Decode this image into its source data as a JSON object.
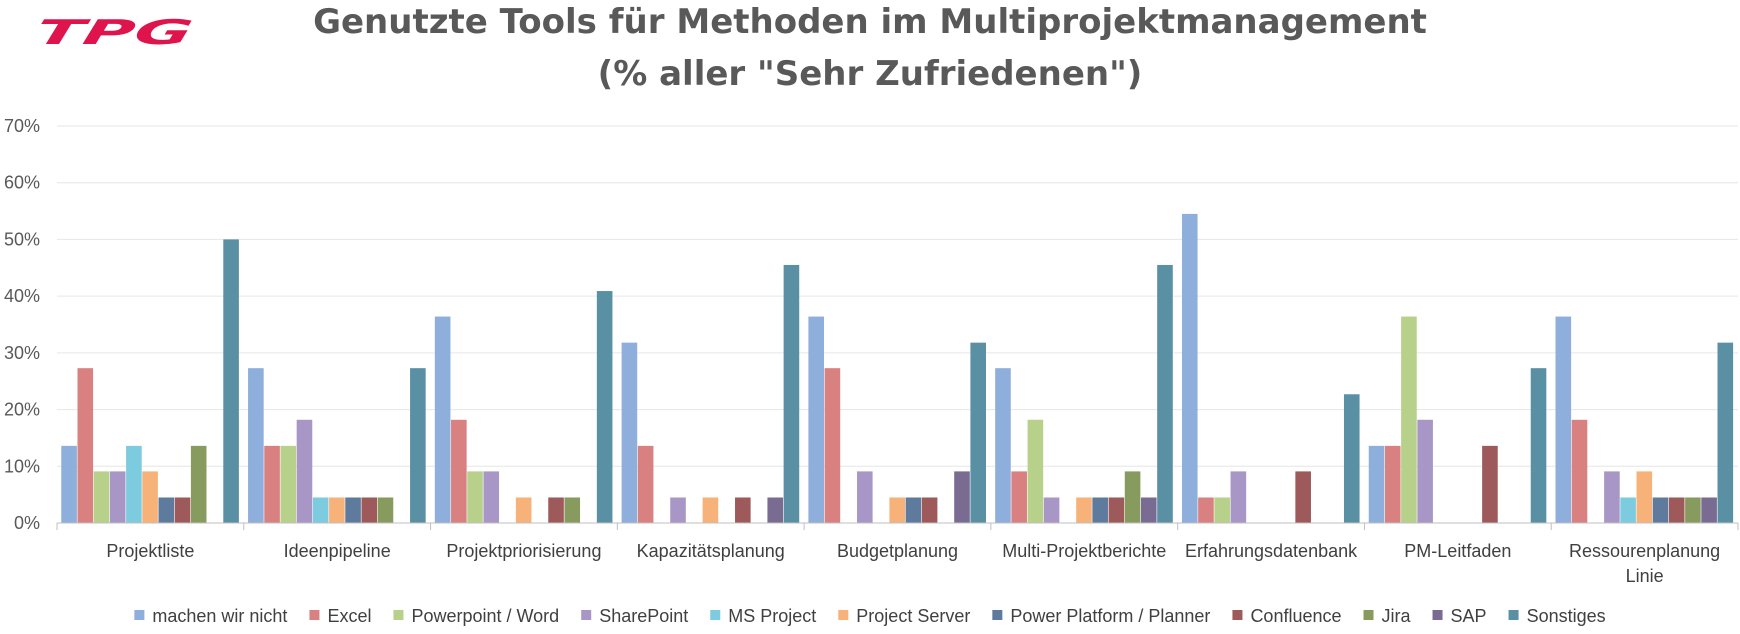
{
  "logo_text": "TPG",
  "colors": {
    "brand": "#e0144c",
    "title": "#595959",
    "grid": "#e6e6e6",
    "axis": "#bfbfbf"
  },
  "chart_data": {
    "type": "bar",
    "title": "Genutzte Tools für Methoden im Multiprojektmanagement",
    "subtitle": "(% aller \"Sehr Zufriedenen\")",
    "xlabel": "",
    "ylabel": "",
    "ylim": [
      0,
      70
    ],
    "yticks": [
      "0%",
      "10%",
      "20%",
      "30%",
      "40%",
      "50%",
      "60%",
      "70%"
    ],
    "grid": true,
    "legend_position": "bottom",
    "categories": [
      [
        "Projektliste"
      ],
      [
        "Ideenpipeline"
      ],
      [
        "Projektpriorisierung"
      ],
      [
        "Kapazitätsplanung"
      ],
      [
        "Budgetplanung"
      ],
      [
        "Multi-Projektberichte"
      ],
      [
        "Erfahrungsdatenbank"
      ],
      [
        "PM-Leitfaden"
      ],
      [
        "Ressourenplanung",
        "Linie"
      ]
    ],
    "series": [
      {
        "name": "machen wir nicht",
        "color": "#8eaedb",
        "values": [
          13.6,
          27.3,
          36.4,
          31.8,
          36.4,
          27.3,
          54.5,
          13.6,
          36.4
        ]
      },
      {
        "name": "Excel",
        "color": "#d98180",
        "values": [
          27.3,
          13.6,
          18.2,
          13.6,
          27.3,
          9.1,
          4.5,
          13.6,
          18.2
        ]
      },
      {
        "name": "Powerpoint / Word",
        "color": "#b7d18b",
        "values": [
          9.1,
          13.6,
          9.1,
          0,
          0,
          18.2,
          4.5,
          36.4,
          0
        ]
      },
      {
        "name": "SharePoint",
        "color": "#a897c6",
        "values": [
          9.1,
          18.2,
          9.1,
          4.5,
          9.1,
          4.5,
          9.1,
          18.2,
          9.1
        ]
      },
      {
        "name": "MS Project",
        "color": "#7dcbdf",
        "values": [
          13.6,
          4.5,
          0,
          0,
          0,
          0,
          0,
          0,
          4.5
        ]
      },
      {
        "name": "Project Server",
        "color": "#f7b279",
        "values": [
          9.1,
          4.5,
          4.5,
          4.5,
          4.5,
          4.5,
          0,
          0,
          9.1
        ]
      },
      {
        "name": "Power Platform / Planner",
        "color": "#5e7b9e",
        "values": [
          4.5,
          4.5,
          0,
          0,
          4.5,
          4.5,
          0,
          0,
          4.5
        ]
      },
      {
        "name": "Confluence",
        "color": "#9e5a5a",
        "values": [
          4.5,
          4.5,
          4.5,
          4.5,
          4.5,
          4.5,
          9.1,
          13.6,
          4.5
        ]
      },
      {
        "name": "Jira",
        "color": "#889b5e",
        "values": [
          13.6,
          4.5,
          4.5,
          0,
          0,
          9.1,
          0,
          0,
          4.5
        ]
      },
      {
        "name": "SAP",
        "color": "#7a6b93",
        "values": [
          0,
          0,
          0,
          4.5,
          9.1,
          4.5,
          0,
          0,
          4.5
        ]
      },
      {
        "name": "Sonstiges",
        "color": "#5a90a4",
        "values": [
          50.0,
          27.3,
          40.9,
          45.5,
          31.8,
          45.5,
          22.7,
          27.3,
          31.8
        ]
      }
    ]
  }
}
